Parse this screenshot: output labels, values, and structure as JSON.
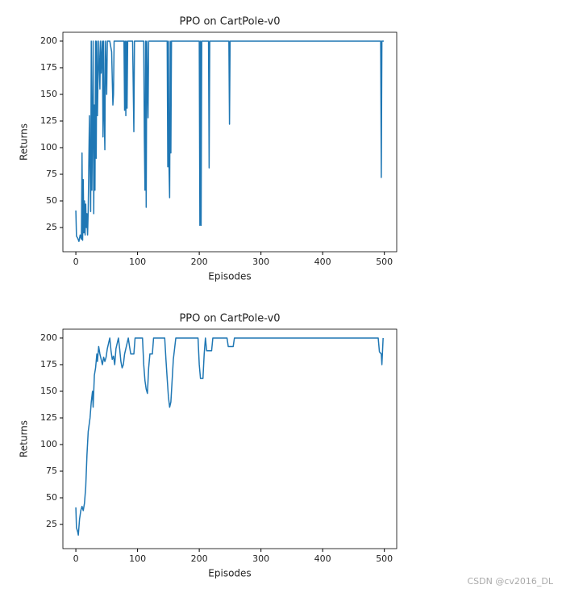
{
  "chart_data": [
    {
      "type": "line",
      "title": "PPO on CartPole-v0",
      "xlabel": "Episodes",
      "ylabel": "Returns",
      "xlim": [
        -21,
        520
      ],
      "ylim": [
        2.3,
        208.3
      ],
      "xticks": [
        0,
        100,
        200,
        300,
        400,
        500
      ],
      "yticks": [
        25,
        50,
        75,
        100,
        125,
        150,
        175,
        200
      ],
      "series": [
        {
          "color": "#1f77b4",
          "x": [
            0,
            1,
            3,
            5,
            7,
            9,
            10,
            11,
            12,
            13,
            14,
            15,
            16,
            17,
            18,
            19,
            20,
            22,
            23,
            24,
            25,
            26,
            27,
            28,
            29,
            30,
            31,
            32,
            33,
            34,
            35,
            37,
            39,
            40,
            41,
            43,
            44,
            45,
            46,
            47,
            48,
            50,
            51,
            55,
            58,
            60,
            61,
            62,
            78,
            79,
            80,
            81,
            82,
            83,
            84,
            92,
            94,
            95,
            110,
            111,
            112,
            113,
            114,
            115,
            117,
            118,
            148,
            149,
            150,
            151,
            152,
            153,
            154,
            155,
            200,
            201,
            202,
            203,
            204,
            215,
            216,
            217,
            248,
            249,
            250,
            494,
            495,
            496,
            499
          ],
          "values": [
            41,
            17,
            15,
            12,
            18,
            14,
            95,
            13,
            70,
            20,
            50,
            18,
            47,
            25,
            38,
            18,
            40,
            130,
            80,
            40,
            200,
            60,
            120,
            200,
            38,
            140,
            60,
            200,
            90,
            200,
            130,
            200,
            155,
            200,
            170,
            200,
            110,
            200,
            130,
            98,
            200,
            150,
            200,
            200,
            190,
            140,
            150,
            200,
            200,
            135,
            200,
            130,
            200,
            137,
            200,
            200,
            115,
            200,
            200,
            110,
            60,
            200,
            44,
            200,
            128,
            200,
            200,
            82,
            200,
            82,
            53,
            200,
            95,
            200,
            200,
            27,
            200,
            27,
            200,
            200,
            81,
            200,
            200,
            122,
            200,
            200,
            72,
            200,
            200
          ]
        }
      ]
    },
    {
      "type": "line",
      "title": "PPO on CartPole-v0",
      "xlabel": "Episodes",
      "ylabel": "Returns",
      "xlim": [
        -21,
        520
      ],
      "ylim": [
        2.3,
        208.3
      ],
      "xticks": [
        0,
        100,
        200,
        300,
        400,
        500
      ],
      "yticks": [
        25,
        50,
        75,
        100,
        125,
        150,
        175,
        200
      ],
      "series": [
        {
          "color": "#1f77b4",
          "x": [
            0,
            1,
            3,
            4,
            6,
            8,
            10,
            12,
            14,
            16,
            18,
            20,
            23,
            25,
            27,
            28,
            30,
            32,
            34,
            35,
            37,
            39,
            41,
            43,
            45,
            47,
            49,
            51,
            53,
            55,
            57,
            59,
            61,
            63,
            65,
            67,
            69,
            71,
            73,
            75,
            77,
            79,
            81,
            83,
            85,
            87,
            89,
            94,
            96,
            108,
            110,
            112,
            114,
            116,
            118,
            120,
            124,
            126,
            144,
            146,
            148,
            150,
            152,
            154,
            156,
            158,
            160,
            162,
            198,
            200,
            202,
            206,
            208,
            210,
            212,
            220,
            222,
            245,
            247,
            255,
            257,
            490,
            492,
            495,
            496,
            498
          ],
          "values": [
            41,
            22,
            18,
            15,
            30,
            38,
            42,
            38,
            45,
            60,
            90,
            112,
            125,
            140,
            150,
            135,
            165,
            172,
            185,
            178,
            192,
            185,
            180,
            175,
            182,
            178,
            182,
            190,
            195,
            200,
            188,
            180,
            183,
            175,
            190,
            195,
            200,
            190,
            178,
            172,
            175,
            185,
            190,
            195,
            200,
            192,
            185,
            185,
            200,
            200,
            175,
            160,
            152,
            148,
            172,
            185,
            185,
            200,
            200,
            180,
            162,
            145,
            135,
            140,
            160,
            180,
            190,
            200,
            200,
            175,
            162,
            162,
            185,
            200,
            188,
            188,
            200,
            200,
            192,
            192,
            200,
            200,
            187,
            185,
            175,
            200
          ]
        }
      ]
    }
  ],
  "watermark": "CSDN @cv2016_DL"
}
